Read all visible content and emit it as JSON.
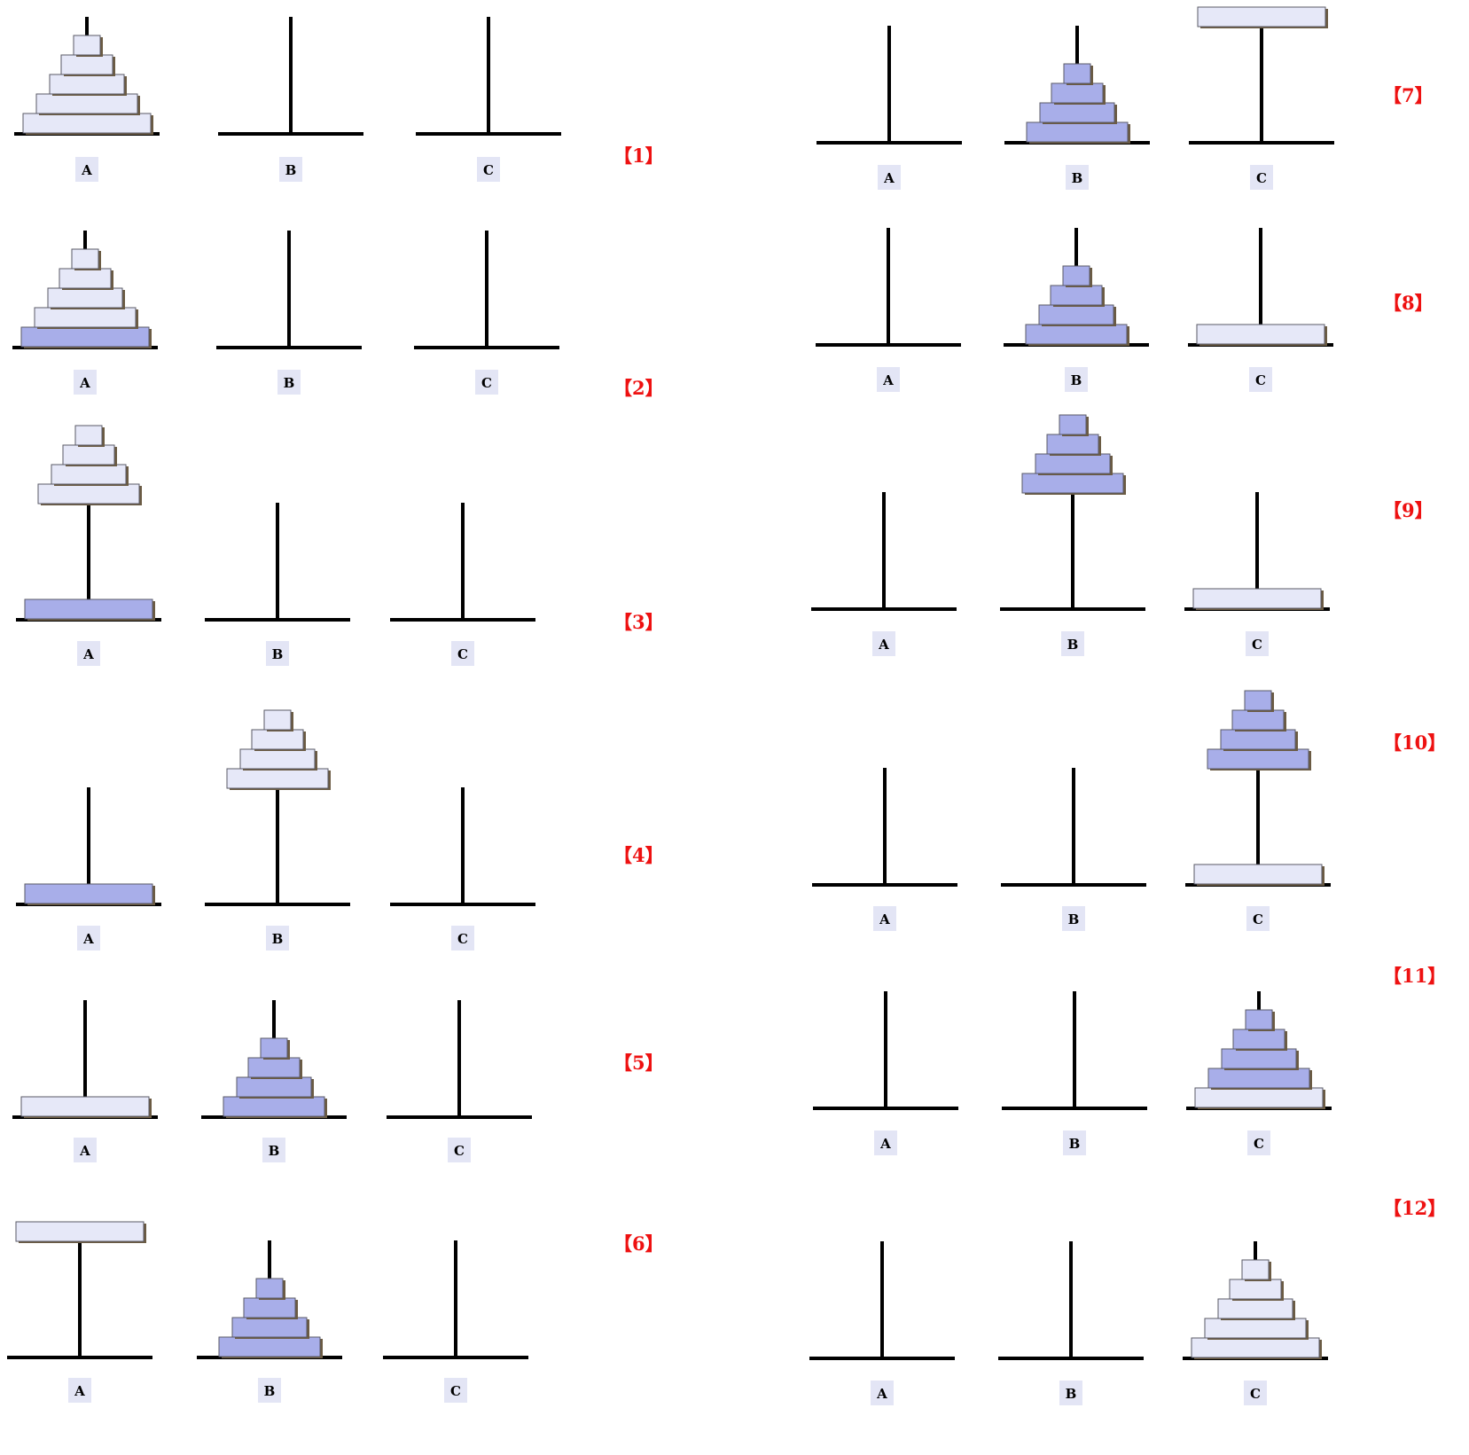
{
  "peg_names": [
    "A",
    "B",
    "C"
  ],
  "colors": {
    "disk_light": "#e6e8f8",
    "disk_blue": "#a8aee9",
    "disk_border": "#5a5a66",
    "disk_shadow": "#6b5b43",
    "label_bg": "#e3e5f5",
    "step_color": "#ee1111",
    "peg_color": "#000000"
  },
  "steps": [
    {
      "label": "【1】",
      "towers": [
        {
          "peg": "A",
          "disks": [
            {
              "size": 5,
              "color": "light"
            },
            {
              "size": 4,
              "color": "light"
            },
            {
              "size": 3,
              "color": "light"
            },
            {
              "size": 2,
              "color": "light"
            },
            {
              "size": 1,
              "color": "light"
            }
          ]
        },
        {
          "peg": "B",
          "disks": []
        },
        {
          "peg": "C",
          "disks": []
        }
      ]
    },
    {
      "label": "【2】",
      "towers": [
        {
          "peg": "A",
          "disks": [
            {
              "size": 5,
              "color": "blue"
            },
            {
              "size": 4,
              "color": "light"
            },
            {
              "size": 3,
              "color": "light"
            },
            {
              "size": 2,
              "color": "light"
            },
            {
              "size": 1,
              "color": "light"
            }
          ]
        },
        {
          "peg": "B",
          "disks": []
        },
        {
          "peg": "C",
          "disks": []
        }
      ]
    },
    {
      "label": "【3】",
      "towers": [
        {
          "peg": "A",
          "disks": [
            {
              "size": 5,
              "color": "blue"
            }
          ],
          "lifted": [
            {
              "size": 4,
              "color": "light"
            },
            {
              "size": 3,
              "color": "light"
            },
            {
              "size": 2,
              "color": "light"
            },
            {
              "size": 1,
              "color": "light"
            }
          ]
        },
        {
          "peg": "B",
          "disks": []
        },
        {
          "peg": "C",
          "disks": []
        }
      ]
    },
    {
      "label": "【4】",
      "towers": [
        {
          "peg": "A",
          "disks": [
            {
              "size": 5,
              "color": "blue"
            }
          ]
        },
        {
          "peg": "B",
          "disks": [],
          "lifted": [
            {
              "size": 4,
              "color": "light"
            },
            {
              "size": 3,
              "color": "light"
            },
            {
              "size": 2,
              "color": "light"
            },
            {
              "size": 1,
              "color": "light"
            }
          ]
        },
        {
          "peg": "C",
          "disks": []
        }
      ]
    },
    {
      "label": "【5】",
      "towers": [
        {
          "peg": "A",
          "disks": [
            {
              "size": 5,
              "color": "light"
            }
          ]
        },
        {
          "peg": "B",
          "disks": [
            {
              "size": 4,
              "color": "blue"
            },
            {
              "size": 3,
              "color": "blue"
            },
            {
              "size": 2,
              "color": "blue"
            },
            {
              "size": 1,
              "color": "blue"
            }
          ]
        },
        {
          "peg": "C",
          "disks": []
        }
      ]
    },
    {
      "label": "【6】",
      "towers": [
        {
          "peg": "A",
          "disks": [],
          "lifted": [
            {
              "size": 5,
              "color": "light"
            }
          ]
        },
        {
          "peg": "B",
          "disks": [
            {
              "size": 4,
              "color": "blue"
            },
            {
              "size": 3,
              "color": "blue"
            },
            {
              "size": 2,
              "color": "blue"
            },
            {
              "size": 1,
              "color": "blue"
            }
          ]
        },
        {
          "peg": "C",
          "disks": []
        }
      ]
    },
    {
      "label": "【7】",
      "towers": [
        {
          "peg": "A",
          "disks": []
        },
        {
          "peg": "B",
          "disks": [
            {
              "size": 4,
              "color": "blue"
            },
            {
              "size": 3,
              "color": "blue"
            },
            {
              "size": 2,
              "color": "blue"
            },
            {
              "size": 1,
              "color": "blue"
            }
          ]
        },
        {
          "peg": "C",
          "disks": [],
          "lifted": [
            {
              "size": 5,
              "color": "light"
            }
          ]
        }
      ]
    },
    {
      "label": "【8】",
      "towers": [
        {
          "peg": "A",
          "disks": []
        },
        {
          "peg": "B",
          "disks": [
            {
              "size": 4,
              "color": "blue"
            },
            {
              "size": 3,
              "color": "blue"
            },
            {
              "size": 2,
              "color": "blue"
            },
            {
              "size": 1,
              "color": "blue"
            }
          ]
        },
        {
          "peg": "C",
          "disks": [
            {
              "size": 5,
              "color": "light"
            }
          ]
        }
      ]
    },
    {
      "label": "【9】",
      "towers": [
        {
          "peg": "A",
          "disks": []
        },
        {
          "peg": "B",
          "disks": [],
          "lifted": [
            {
              "size": 4,
              "color": "blue"
            },
            {
              "size": 3,
              "color": "blue"
            },
            {
              "size": 2,
              "color": "blue"
            },
            {
              "size": 1,
              "color": "blue"
            }
          ]
        },
        {
          "peg": "C",
          "disks": [
            {
              "size": 5,
              "color": "light"
            }
          ]
        }
      ]
    },
    {
      "label": "【10】",
      "towers": [
        {
          "peg": "A",
          "disks": []
        },
        {
          "peg": "B",
          "disks": []
        },
        {
          "peg": "C",
          "disks": [
            {
              "size": 5,
              "color": "light"
            }
          ],
          "lifted": [
            {
              "size": 4,
              "color": "blue"
            },
            {
              "size": 3,
              "color": "blue"
            },
            {
              "size": 2,
              "color": "blue"
            },
            {
              "size": 1,
              "color": "blue"
            }
          ]
        }
      ]
    },
    {
      "label": "【11】",
      "towers": [
        {
          "peg": "A",
          "disks": []
        },
        {
          "peg": "B",
          "disks": []
        },
        {
          "peg": "C",
          "disks": [
            {
              "size": 5,
              "color": "light"
            },
            {
              "size": 4,
              "color": "blue"
            },
            {
              "size": 3,
              "color": "blue"
            },
            {
              "size": 2,
              "color": "blue"
            },
            {
              "size": 1,
              "color": "blue"
            }
          ]
        }
      ]
    },
    {
      "label": "【12】",
      "towers": [
        {
          "peg": "A",
          "disks": []
        },
        {
          "peg": "B",
          "disks": []
        },
        {
          "peg": "C",
          "disks": [
            {
              "size": 5,
              "color": "light"
            },
            {
              "size": 4,
              "color": "light"
            },
            {
              "size": 3,
              "color": "light"
            },
            {
              "size": 2,
              "color": "light"
            },
            {
              "size": 1,
              "color": "light"
            }
          ]
        }
      ]
    }
  ]
}
